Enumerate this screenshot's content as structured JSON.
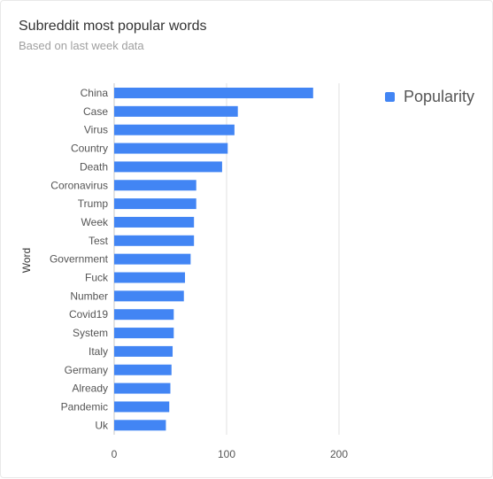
{
  "header": {
    "title": "Subreddit most popular words",
    "subtitle": "Based on last week data"
  },
  "legend": {
    "label": "Popularity",
    "color": "#4285f4",
    "position": "top-right"
  },
  "chart_data": {
    "type": "bar",
    "orientation": "horizontal",
    "title": "Subreddit most popular words",
    "subtitle": "Based on last week data",
    "ylabel": "Word",
    "xlabel": "",
    "categories": [
      "China",
      "Case",
      "Virus",
      "Country",
      "Death",
      "Coronavirus",
      "Trump",
      "Week",
      "Test",
      "Government",
      "Fuck",
      "Number",
      "Covid19",
      "System",
      "Italy",
      "Germany",
      "Already",
      "Pandemic",
      "Uk"
    ],
    "series": [
      {
        "name": "Popularity",
        "color": "#4285f4",
        "values": [
          177,
          110,
          107,
          101,
          96,
          73,
          73,
          71,
          71,
          68,
          63,
          62,
          53,
          53,
          52,
          51,
          50,
          49,
          46
        ]
      }
    ],
    "xlim": [
      0,
      230
    ],
    "xticks": [
      0,
      100,
      200
    ],
    "grid": true,
    "legend": "top-right"
  }
}
